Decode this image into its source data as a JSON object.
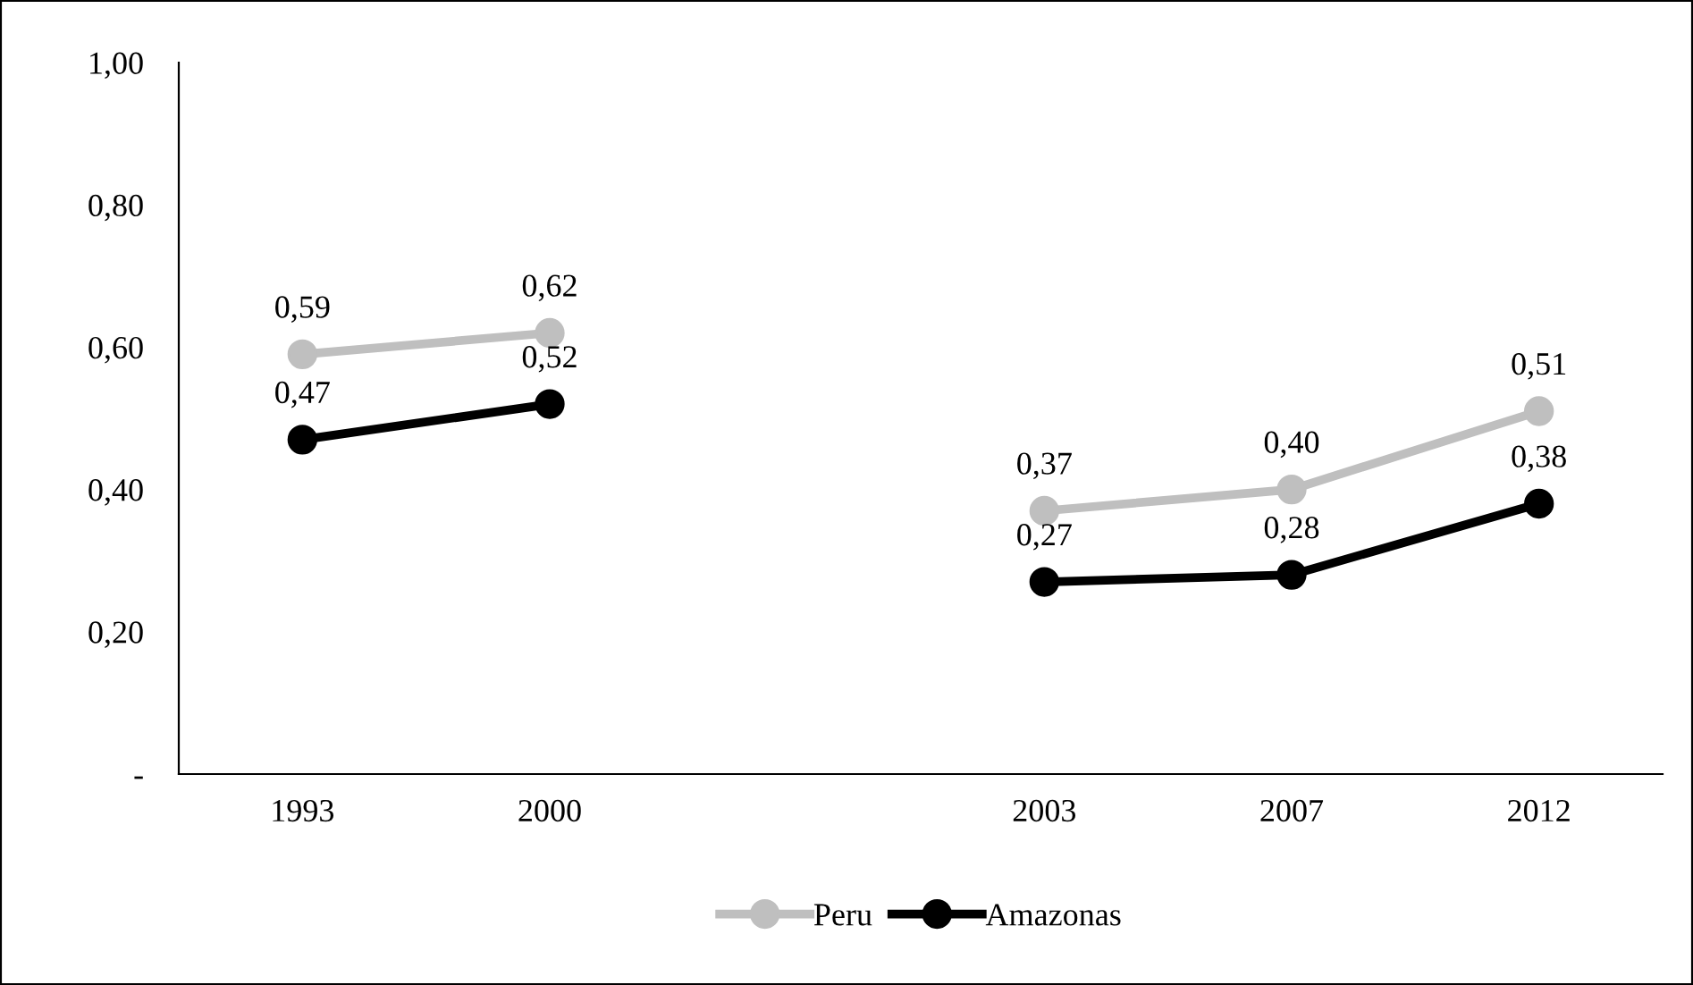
{
  "chart_data": {
    "type": "line",
    "categories": [
      "1993",
      "2000",
      null,
      "2003",
      "2007",
      "2012"
    ],
    "series": [
      {
        "name": "Peru",
        "color": "#bfbfbf",
        "values": [
          0.59,
          0.62,
          null,
          0.37,
          0.4,
          0.51
        ],
        "value_labels": [
          "0,59",
          "0,62",
          null,
          "0,37",
          "0,40",
          "0,51"
        ]
      },
      {
        "name": "Amazonas",
        "color": "#000000",
        "values": [
          0.47,
          0.52,
          null,
          0.27,
          0.28,
          0.38
        ],
        "value_labels": [
          "0,47",
          "0,52",
          null,
          "0,27",
          "0,28",
          "0,38"
        ]
      }
    ],
    "ylim": [
      0,
      1
    ],
    "yticks": [
      {
        "value": 0,
        "label": "-"
      },
      {
        "value": 0.2,
        "label": "0,20"
      },
      {
        "value": 0.4,
        "label": "0,40"
      },
      {
        "value": 0.6,
        "label": "0,60"
      },
      {
        "value": 0.8,
        "label": "0,80"
      },
      {
        "value": 1,
        "label": "1,00"
      }
    ],
    "grid": false,
    "legend": "bottom",
    "marker": "circle",
    "line_style": "solid"
  }
}
